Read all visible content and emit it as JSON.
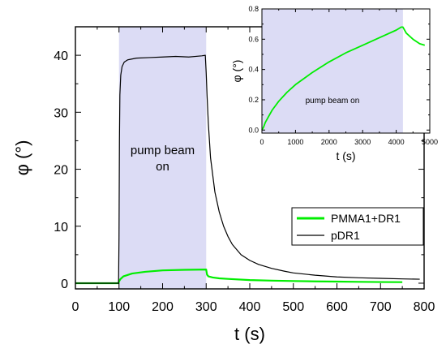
{
  "chart_data": [
    {
      "type": "line",
      "xlabel": "t (s)",
      "ylabel": "φ (°)",
      "xlim": [
        0,
        800
      ],
      "ylim": [
        -1,
        45
      ],
      "x_ticks": [
        0,
        100,
        200,
        300,
        400,
        500,
        600,
        700,
        800
      ],
      "y_ticks": [
        0,
        10,
        20,
        30,
        40
      ],
      "shaded_region": {
        "x": [
          100,
          300
        ],
        "label": [
          "pump beam",
          "on"
        ],
        "color": "#dcdcf5"
      },
      "legend": {
        "position": "right",
        "entries": [
          "PMMA1+DR1",
          "pDR1"
        ]
      },
      "series": [
        {
          "name": "PMMA1+DR1",
          "color": "#00ee00",
          "x": [
            0,
            99,
            100,
            103,
            110,
            130,
            160,
            200,
            250,
            300,
            302,
            305,
            315,
            330,
            350,
            400,
            450,
            500,
            550,
            600,
            650,
            700,
            750
          ],
          "y": [
            0,
            0,
            0.3,
            0.7,
            1.2,
            1.7,
            2.0,
            2.25,
            2.35,
            2.4,
            1.5,
            1.2,
            1.0,
            0.85,
            0.75,
            0.55,
            0.45,
            0.38,
            0.32,
            0.28,
            0.24,
            0.2,
            0.18
          ]
        },
        {
          "name": "pDR1",
          "color": "#000000",
          "x": [
            0,
            99,
            100,
            101,
            102,
            104,
            107,
            112,
            120,
            140,
            170,
            200,
            230,
            260,
            290,
            298,
            300,
            302,
            305,
            310,
            320,
            330,
            340,
            350,
            360,
            380,
            400,
            420,
            450,
            480,
            500,
            550,
            600,
            650,
            700,
            750,
            790
          ],
          "y": [
            0,
            0,
            8,
            25,
            33,
            36.5,
            38,
            38.8,
            39.2,
            39.5,
            39.6,
            39.7,
            39.8,
            39.7,
            39.9,
            40.0,
            37,
            33,
            28,
            22,
            16,
            12.5,
            10,
            8.2,
            6.8,
            5.0,
            4.0,
            3.3,
            2.6,
            2.1,
            1.8,
            1.4,
            1.1,
            0.95,
            0.85,
            0.75,
            0.7
          ]
        }
      ]
    },
    {
      "type": "line",
      "xlabel": "t (s)",
      "ylabel": "φ (°)",
      "xlim": [
        0,
        5000
      ],
      "ylim": [
        -0.02,
        0.8
      ],
      "x_ticks": [
        0,
        1000,
        2000,
        3000,
        4000,
        5000
      ],
      "y_ticks": [
        0.0,
        0.2,
        0.4,
        0.6,
        0.8
      ],
      "shaded_region": {
        "x": [
          0,
          4200
        ],
        "label": [
          "pump beam on"
        ],
        "color": "#dcdcf5"
      },
      "series": [
        {
          "color": "#00ee00",
          "x": [
            0,
            50,
            100,
            200,
            300,
            500,
            750,
            1000,
            1500,
            2000,
            2500,
            3000,
            3500,
            4000,
            4150,
            4200,
            4300,
            4500,
            4700,
            4850
          ],
          "y": [
            0,
            0.02,
            0.05,
            0.09,
            0.13,
            0.19,
            0.25,
            0.3,
            0.38,
            0.45,
            0.51,
            0.56,
            0.61,
            0.66,
            0.68,
            0.68,
            0.64,
            0.6,
            0.57,
            0.56
          ]
        }
      ]
    }
  ]
}
